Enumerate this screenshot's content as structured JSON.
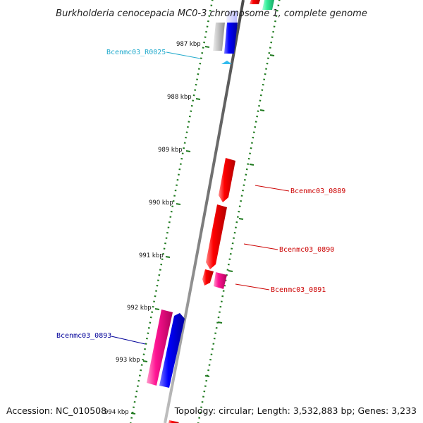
{
  "title": "Burkholderia cenocepacia MC0-3 chromosome 1, complete genome",
  "footer": {
    "accession": "Accession: NC_010508",
    "topology": "Topology: circular; Length: 3,532,883 bp; Genes: 3,233"
  },
  "colors": {
    "backbone": "#8a8a8a",
    "scale_tick": "#1f7a1f",
    "forward_cds": "#ff0000",
    "reverse_cds": "#0000ff",
    "pseudo": "#ff1493",
    "rna": "#33bbee",
    "gray_feature": "#c8c8c8",
    "green_feature": "#33ee99",
    "label_red": "#cc0000",
    "label_blue": "#000099",
    "label_cyan": "#22aacc"
  },
  "kbp_labels": [
    {
      "id": "987",
      "text": "987 kbp"
    },
    {
      "id": "988",
      "text": "988 kbp"
    },
    {
      "id": "989",
      "text": "989 kbp"
    },
    {
      "id": "990",
      "text": "990 kbp"
    },
    {
      "id": "991",
      "text": "991 kbp"
    },
    {
      "id": "992",
      "text": "992 kbp"
    },
    {
      "id": "993",
      "text": "993 kbp"
    },
    {
      "id": "994",
      "text": "994 kbp"
    }
  ],
  "gene_labels": [
    {
      "id": "r0025",
      "text": "Bcenmc03_R0025",
      "color": "cyan"
    },
    {
      "id": "g0889",
      "text": "Bcenmc03_0889",
      "color": "red"
    },
    {
      "id": "g0890",
      "text": "Bcenmc03_0890",
      "color": "red"
    },
    {
      "id": "g0891",
      "text": "Bcenmc03_0891",
      "color": "red"
    },
    {
      "id": "g0893",
      "text": "Bcenmc03_0893",
      "color": "blue"
    }
  ]
}
